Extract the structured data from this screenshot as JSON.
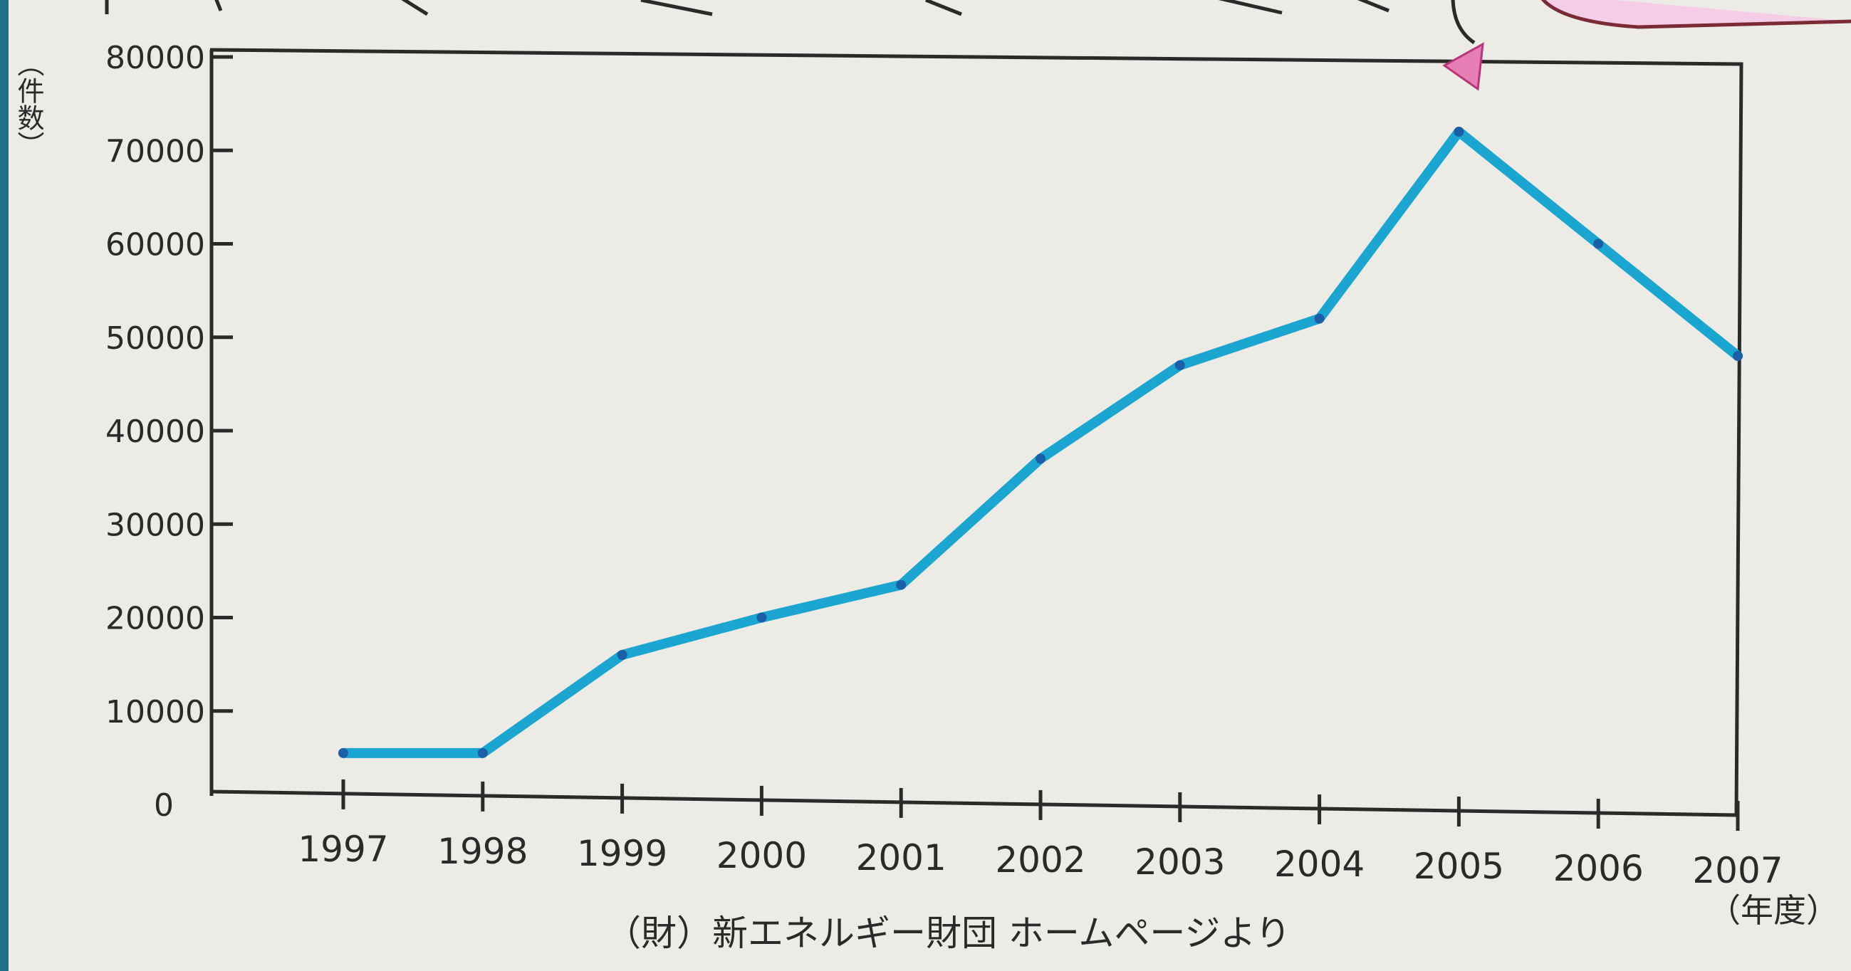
{
  "chart_data": {
    "type": "line",
    "x": [
      "1997",
      "1998",
      "1999",
      "2000",
      "2001",
      "2002",
      "2003",
      "2004",
      "2005",
      "2006",
      "2007"
    ],
    "series": [
      {
        "values": [
          5500,
          5500,
          16000,
          20000,
          23500,
          37000,
          47000,
          52000,
          72000,
          60000,
          48000
        ],
        "color": "#1aa6d1"
      }
    ],
    "yticks": [
      "0",
      "10000",
      "20000",
      "30000",
      "40000",
      "50000",
      "60000",
      "70000",
      "80000"
    ],
    "ylim": [
      0,
      80000
    ],
    "ylabel_top": "（件数）",
    "xlabel_unit": "（年度）",
    "source": "（財）新エネルギー財団 ホームページより",
    "grid": false
  },
  "colors": {
    "paper": "#ecebe6",
    "line": "#1aa6d1",
    "marker": "#1a5fa8",
    "ink": "#2a2a2a",
    "pink_marker": "#e77fb6"
  }
}
